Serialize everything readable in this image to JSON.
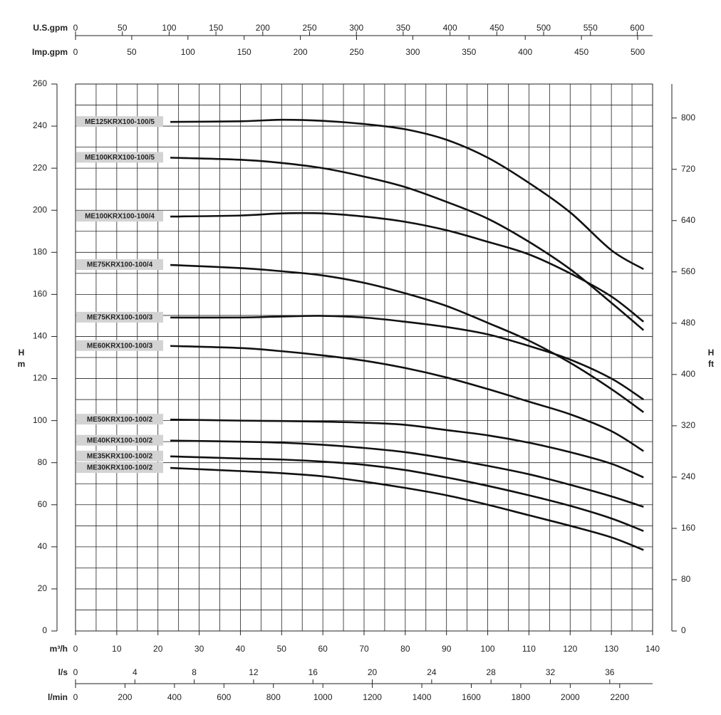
{
  "chart_data": {
    "type": "line",
    "line_color": "#111111",
    "label_box_color": "#d3d3d3",
    "grid": true,
    "y_label": [
      "H",
      "m"
    ],
    "y2_label": [
      "H",
      "ft"
    ],
    "x_label": "m³/h",
    "xlim": [
      0,
      140
    ],
    "xticks": [
      0,
      10,
      20,
      30,
      40,
      50,
      60,
      70,
      80,
      90,
      100,
      110,
      120,
      130,
      140
    ],
    "xminor": [
      5,
      15,
      25,
      35,
      45,
      55,
      65,
      75,
      85,
      95,
      105,
      115,
      125,
      135
    ],
    "ylim": [
      0,
      260
    ],
    "yticks": [
      0,
      20,
      40,
      60,
      80,
      100,
      120,
      140,
      160,
      180,
      200,
      220,
      240,
      260
    ],
    "yminor": [
      10,
      30,
      50,
      70,
      90,
      110,
      130,
      150,
      170,
      190,
      210,
      230,
      250
    ],
    "y2lim": [
      0,
      853
    ],
    "y2ticks": [
      0,
      80,
      160,
      240,
      320,
      400,
      480,
      560,
      640,
      720,
      800
    ],
    "top_axes": [
      {
        "label": "U.S.gpm",
        "xlim": [
          0,
          616.4
        ],
        "xticks": [
          0,
          50,
          100,
          150,
          200,
          250,
          300,
          350,
          400,
          450,
          500,
          550,
          600
        ]
      },
      {
        "label": "Imp.gpm",
        "xlim": [
          0,
          513.3
        ],
        "xticks": [
          0,
          50,
          100,
          150,
          200,
          250,
          300,
          350,
          400,
          450,
          500
        ]
      }
    ],
    "bottom_axes": [
      {
        "label": "l/s",
        "xlim": [
          0,
          38.89
        ],
        "xticks": [
          0,
          4,
          8,
          12,
          16,
          20,
          24,
          28,
          32,
          36
        ]
      },
      {
        "label": "l/min",
        "xlim": [
          0,
          2333
        ],
        "xticks": [
          0,
          200,
          400,
          600,
          800,
          1000,
          1200,
          1400,
          1600,
          1800,
          2000,
          2200
        ]
      }
    ],
    "x": [
      23,
      40,
      50,
      60,
      70,
      80,
      90,
      100,
      110,
      120,
      130,
      137.8
    ],
    "series": [
      {
        "name": "ME125KRX100-100/5",
        "values": [
          242,
          242.3,
          243,
          242.5,
          241,
          238.5,
          233.5,
          225,
          213,
          199,
          181,
          172
        ]
      },
      {
        "name": "ME100KRX100-100/5",
        "values": [
          225,
          224,
          222.5,
          220,
          216,
          211,
          204,
          196,
          185,
          172,
          156,
          143
        ]
      },
      {
        "name": "ME100KRX100-100/4",
        "values": [
          197,
          197.5,
          198.5,
          198.5,
          197,
          194.5,
          190.5,
          185,
          179,
          170,
          159,
          147
        ]
      },
      {
        "name": "ME75KRX100-100/4",
        "values": [
          174,
          172.5,
          171,
          169,
          165.5,
          160.5,
          154.5,
          146.5,
          138,
          127.5,
          115,
          104
        ]
      },
      {
        "name": "ME75KRX100-100/3",
        "values": [
          149,
          149,
          149.5,
          149.8,
          149,
          147,
          144.5,
          141,
          135.5,
          129,
          120,
          110
        ]
      },
      {
        "name": "ME60KRX100-100/3",
        "values": [
          135.5,
          134.5,
          133,
          131,
          128.5,
          125,
          120.5,
          115,
          109,
          103,
          95,
          85.5
        ]
      },
      {
        "name": "ME50KRX100-100/2",
        "values": [
          100.5,
          100,
          99.8,
          99.5,
          99,
          98,
          95.5,
          93,
          89.5,
          85,
          79.5,
          73
        ]
      },
      {
        "name": "ME40KRX100-100/2",
        "values": [
          90.5,
          90,
          89.5,
          88.5,
          87,
          85,
          82,
          78.5,
          74.5,
          69.5,
          64,
          59
        ]
      },
      {
        "name": "ME35KRX100-100/2",
        "values": [
          83,
          82,
          81.5,
          80.5,
          79,
          76.5,
          73,
          69,
          64.5,
          59.5,
          53.5,
          47.5
        ]
      },
      {
        "name": "ME30KRX100-100/2",
        "values": [
          77.5,
          76,
          75,
          73.5,
          71,
          68,
          64.5,
          60,
          55,
          50,
          44.5,
          38.5
        ]
      }
    ]
  }
}
